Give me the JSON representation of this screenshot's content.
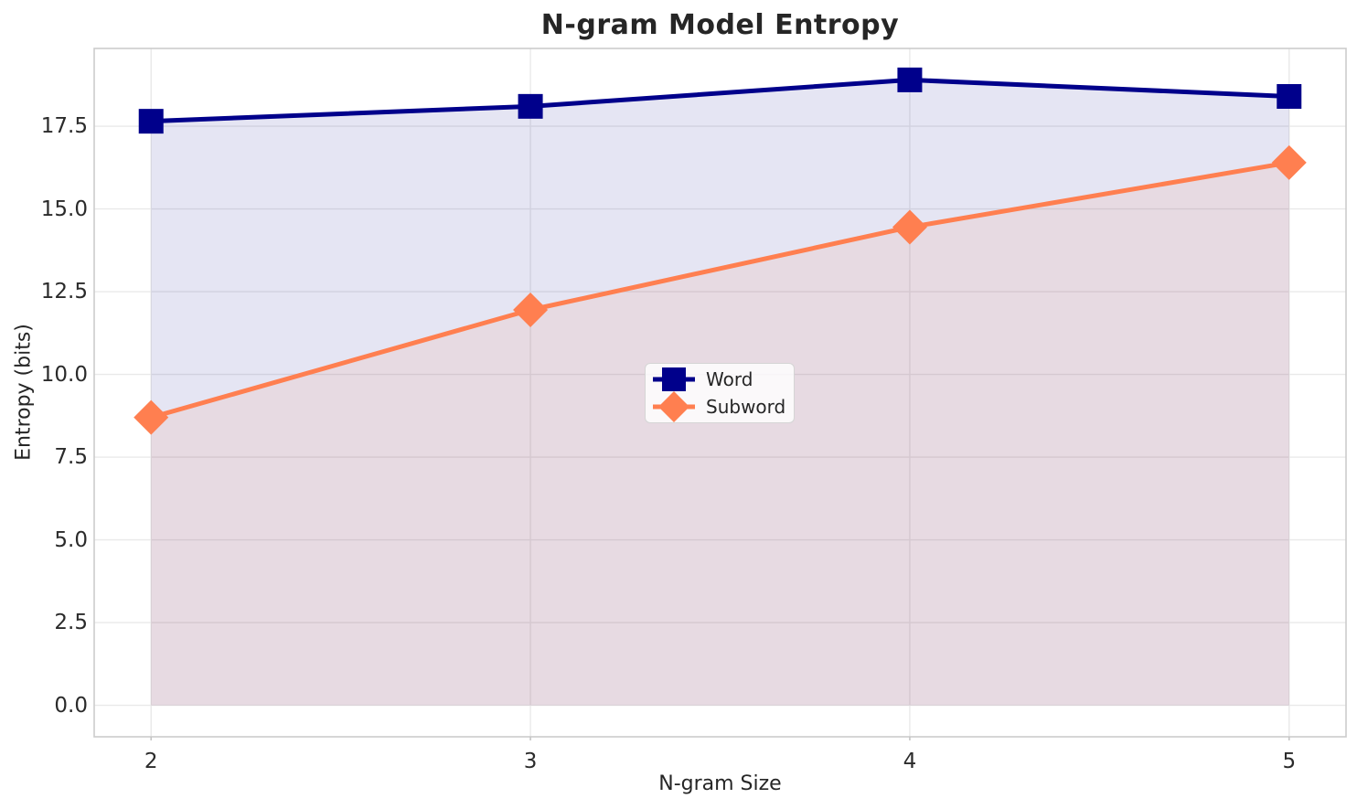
{
  "colors": {
    "grid": "#e9e9e9",
    "spine": "#cccccc",
    "tick_mark": "#c5c5c5",
    "text": "#262626",
    "word_series": "#00008b",
    "subword_series": "#ff7f50",
    "legend_border": "#d5d5d5"
  },
  "chart_data": {
    "type": "line",
    "title": "N-gram Model Entropy",
    "xlabel": "N-gram Size",
    "ylabel": "Entropy (bits)",
    "x": [
      2,
      3,
      4,
      5
    ],
    "series": [
      {
        "name": "Word",
        "marker": "square",
        "color": "#00008b",
        "values": [
          17.65,
          18.1,
          18.9,
          18.4
        ]
      },
      {
        "name": "Subword",
        "marker": "diamond",
        "color": "#ff7f50",
        "values": [
          8.7,
          11.95,
          14.45,
          16.4
        ]
      }
    ],
    "xticks": [
      2,
      3,
      4,
      5
    ],
    "xtick_labels": [
      "2",
      "3",
      "4",
      "5"
    ],
    "yticks": [
      0.0,
      2.5,
      5.0,
      7.5,
      10.0,
      12.5,
      15.0,
      17.5
    ],
    "ytick_labels": [
      "0.0",
      "2.5",
      "5.0",
      "7.5",
      "10.0",
      "12.5",
      "15.0",
      "17.5"
    ],
    "xlim": [
      1.85,
      5.15
    ],
    "ylim": [
      -0.95,
      19.85
    ],
    "grid": true,
    "fill_to_zero": true,
    "fill_alpha": 0.1,
    "legend": {
      "location": "center",
      "entries": [
        "Word",
        "Subword"
      ]
    }
  }
}
